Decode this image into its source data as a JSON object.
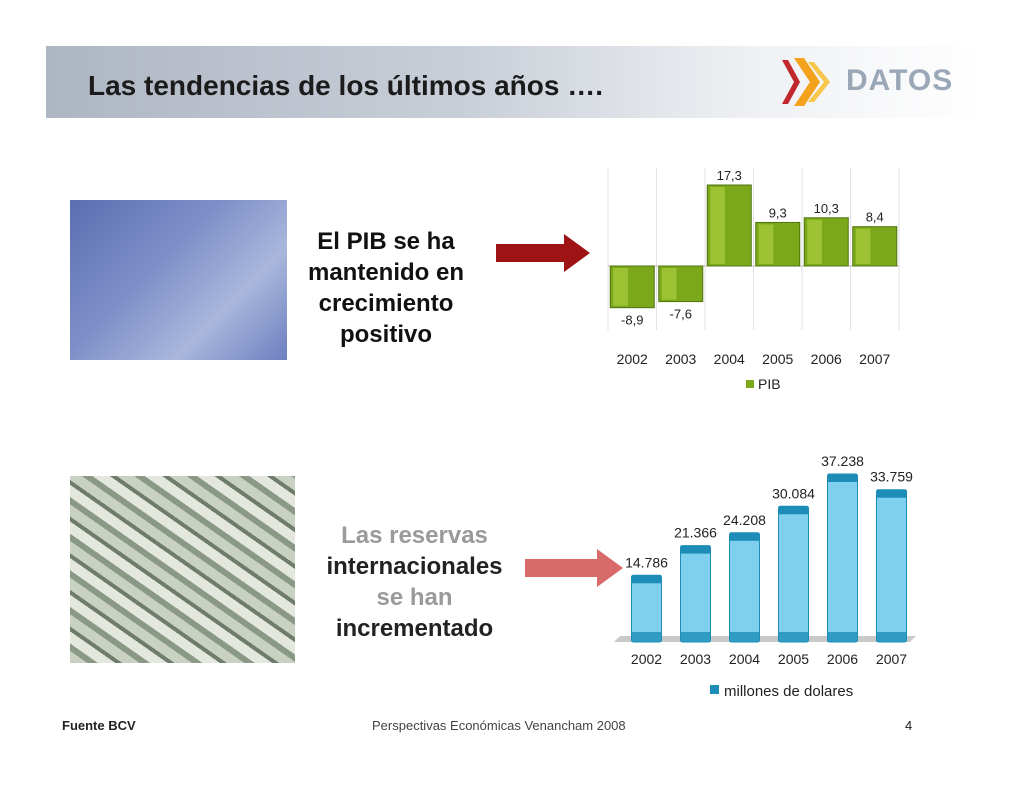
{
  "header": {
    "title": "Las tendencias de los últimos años …."
  },
  "logo": {
    "text": "DATOS"
  },
  "section1": {
    "caption_lines": [
      "El PIB se ha",
      "mantenido en",
      "crecimiento",
      "positivo"
    ]
  },
  "section2": {
    "caption_lines": [
      "Las reservas",
      "internacionales",
      "se han",
      "incrementado"
    ]
  },
  "chart_data": [
    {
      "type": "bar",
      "categories": [
        "2002",
        "2003",
        "2004",
        "2005",
        "2006",
        "2007"
      ],
      "series": [
        {
          "name": "PIB",
          "values": [
            -8.9,
            -7.6,
            17.3,
            9.3,
            10.3,
            8.4
          ]
        }
      ],
      "data_labels": [
        "-8,9",
        "-7,6",
        "17,3",
        "9,3",
        "10,3",
        "8,4"
      ],
      "legend": "bottom",
      "colors": {
        "bar": "#7aa81a",
        "bar_light": "#b9d94a"
      }
    },
    {
      "type": "bar",
      "categories": [
        "2002",
        "2003",
        "2004",
        "2005",
        "2006",
        "2007"
      ],
      "series": [
        {
          "name": "millones de dolares",
          "values": [
            14786,
            21366,
            24208,
            30084,
            37238,
            33759
          ]
        }
      ],
      "data_labels": [
        "14.786",
        "21.366",
        "24.208",
        "30.084",
        "37.238",
        "33.759"
      ],
      "legend": "bottom",
      "colors": {
        "bar": "#7fd0ee",
        "bar_dark": "#1d8db8"
      }
    }
  ],
  "footer": {
    "source": "Fuente BCV",
    "center": "Perspectivas Económicas Venancham 2008",
    "page": "4"
  },
  "colors": {
    "arrow": "#9e1414",
    "header_band": "#b9c0cb"
  }
}
